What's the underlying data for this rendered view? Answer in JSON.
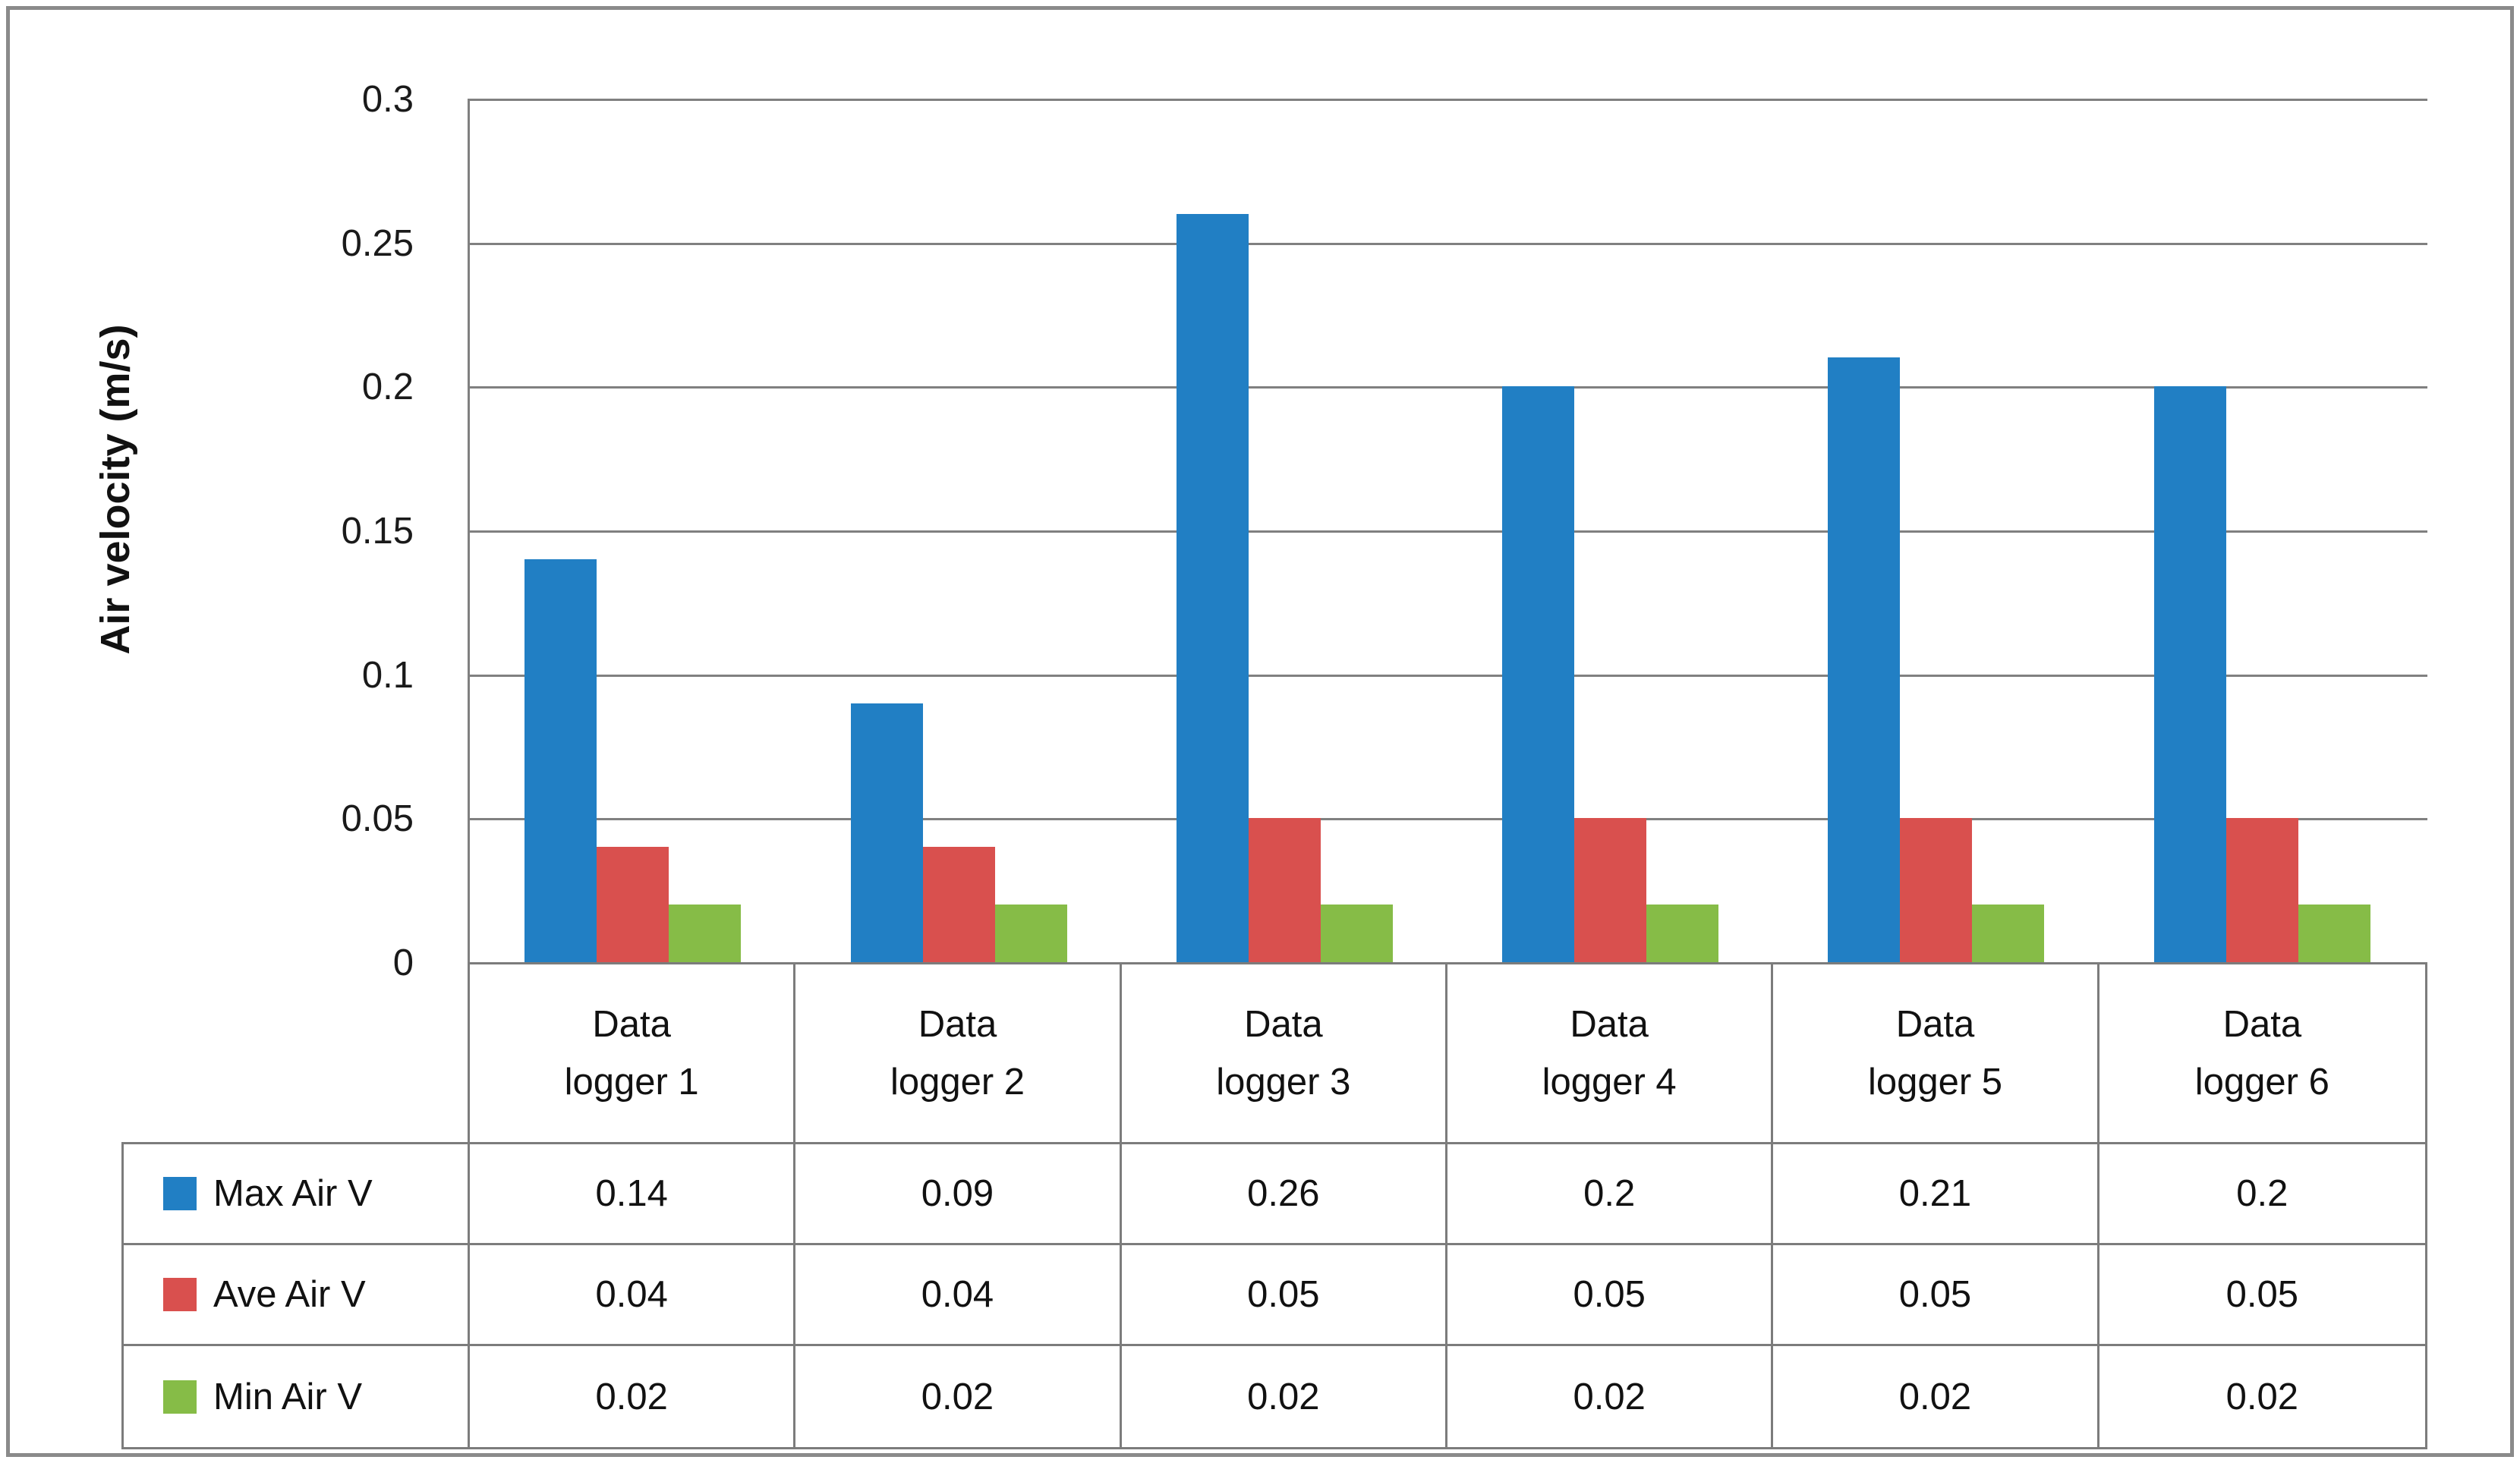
{
  "figure": {
    "background": "#FFFFFF",
    "frame_border_color": "#8A8A8A"
  },
  "chart_data": {
    "type": "bar",
    "title": "",
    "ylabel": "Air velocity (m/s)",
    "xlabel": "",
    "ylim": [
      0,
      0.3
    ],
    "yticks": [
      0,
      0.05,
      0.1,
      0.15,
      0.2,
      0.25,
      0.3
    ],
    "ytick_labels": [
      "0",
      "0.05",
      "0.1",
      "0.15",
      "0.2",
      "0.25",
      "0.3"
    ],
    "grid": true,
    "gridline_color": "#808080",
    "table_border_color": "#7C7C7C",
    "text_color": "#111111",
    "legend_position": "table-left",
    "categories": [
      "Data logger 1",
      "Data logger 2",
      "Data logger 3",
      "Data logger 4",
      "Data logger 5",
      "Data logger 6"
    ],
    "series": [
      {
        "name": "Max Air V",
        "color": "#217FC4",
        "values": [
          0.14,
          0.09,
          0.26,
          0.2,
          0.21,
          0.2
        ],
        "display": [
          "0.14",
          "0.09",
          "0.26",
          "0.2",
          "0.21",
          "0.2"
        ]
      },
      {
        "name": "Ave Air V",
        "color": "#D9504E",
        "values": [
          0.04,
          0.04,
          0.05,
          0.05,
          0.05,
          0.05
        ],
        "display": [
          "0.04",
          "0.04",
          "0.05",
          "0.05",
          "0.05",
          "0.05"
        ]
      },
      {
        "name": "Min Air V",
        "color": "#86BC47",
        "values": [
          0.02,
          0.02,
          0.02,
          0.02,
          0.02,
          0.02
        ],
        "display": [
          "0.02",
          "0.02",
          "0.02",
          "0.02",
          "0.02",
          "0.02"
        ]
      }
    ]
  }
}
